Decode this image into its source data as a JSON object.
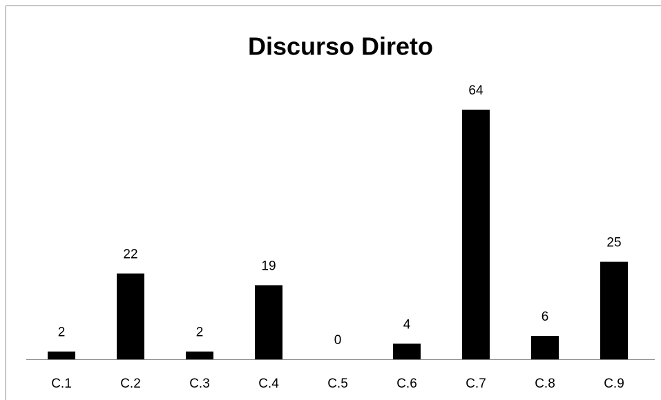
{
  "chart_data": {
    "type": "bar",
    "title": "Discurso Direto",
    "categories": [
      "C.1",
      "C.2",
      "C.3",
      "C.4",
      "C.5",
      "C.6",
      "C.7",
      "C.8",
      "C.9"
    ],
    "values": [
      2,
      22,
      2,
      19,
      0,
      4,
      64,
      6,
      25
    ],
    "color": "#000000"
  }
}
